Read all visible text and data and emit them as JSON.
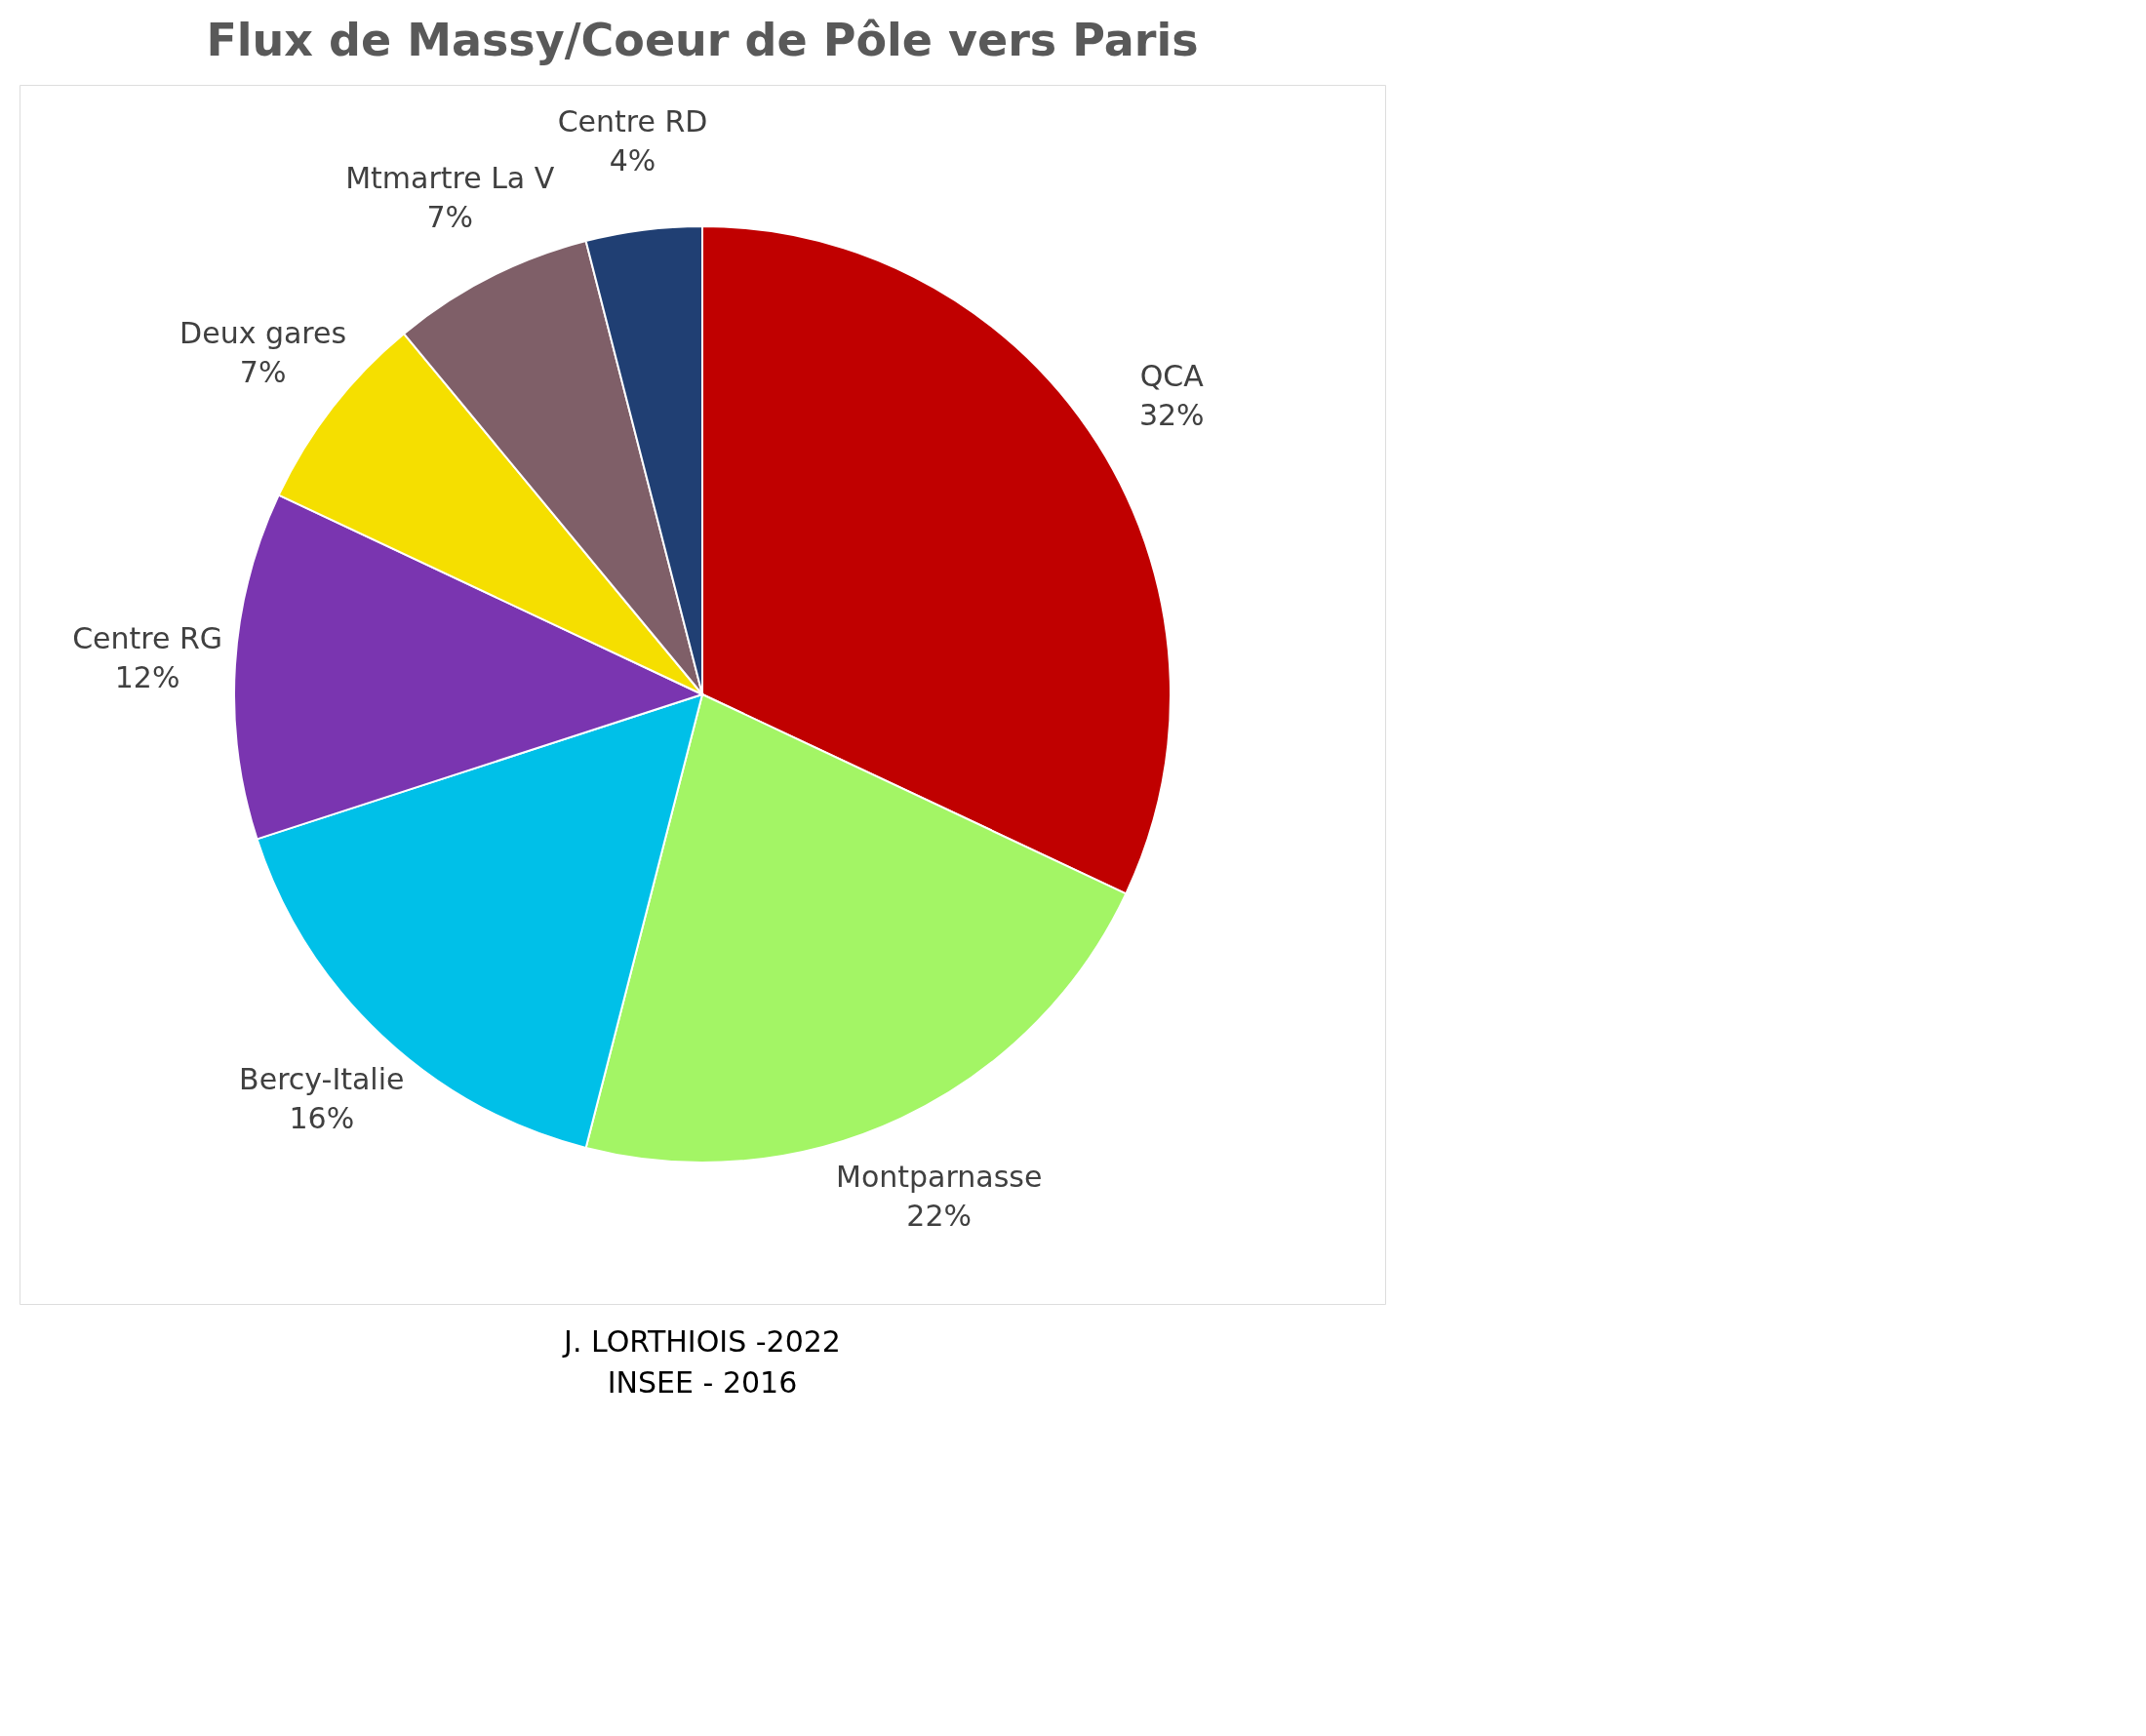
{
  "chart_data": {
    "type": "pie",
    "title": "Flux de Massy/Coeur de Pôle vers Paris",
    "categories": [
      "QCA",
      "Montparnasse",
      "Bercy-Italie",
      "Centre RG",
      "Deux gares",
      "Mtmartre La V",
      "Centre RD"
    ],
    "values": [
      32,
      22,
      16,
      12,
      7,
      7,
      4
    ],
    "value_labels": [
      "32%",
      "22%",
      "16%",
      "12%",
      "7%",
      "7%",
      "4%"
    ],
    "colors": [
      "#c00000",
      "#a3f565",
      "#00c0e8",
      "#7a35b0",
      "#f5df00",
      "#7f5f68",
      "#203f73"
    ],
    "legend": false,
    "annotations": [
      "J. LORTHIOIS -2022",
      "INSEE - 2016"
    ]
  }
}
